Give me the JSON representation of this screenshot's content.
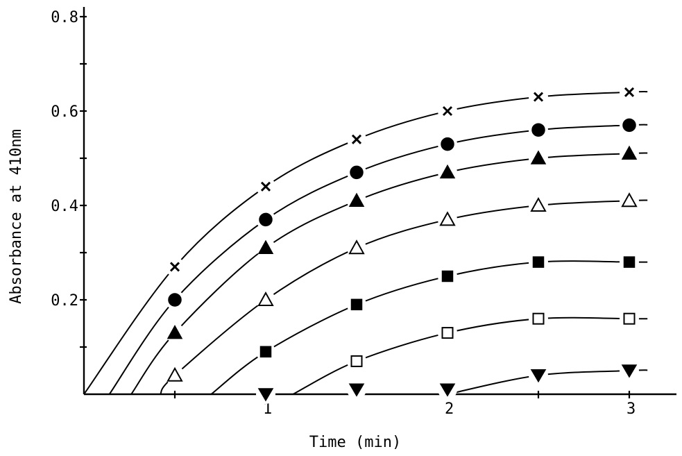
{
  "chart_data": {
    "type": "line",
    "xlabel": "Time (min)",
    "ylabel": "Absorbance at 410nm",
    "xlim": [
      0,
      3.1
    ],
    "ylim": [
      0,
      0.8
    ],
    "x_ticks": [
      1,
      2,
      3
    ],
    "x_tick_labels": [
      "1",
      "2",
      "3"
    ],
    "y_ticks": [
      0.2,
      0.4,
      0.6,
      0.8
    ],
    "y_tick_labels": [
      "0.2",
      "0.4",
      "0.6",
      "0.8"
    ],
    "grid": false,
    "series": [
      {
        "marker": "cross",
        "x": [
          0.5,
          1.0,
          1.5,
          2.0,
          2.5,
          3.0
        ],
        "values": [
          0.27,
          0.44,
          0.54,
          0.6,
          0.63,
          0.64
        ],
        "x_intercept": 0.0
      },
      {
        "marker": "filled-circle",
        "x": [
          0.5,
          1.0,
          1.5,
          2.0,
          2.5,
          3.0
        ],
        "values": [
          0.2,
          0.37,
          0.47,
          0.53,
          0.56,
          0.57
        ],
        "x_intercept": 0.14
      },
      {
        "marker": "filled-triangle",
        "x": [
          0.5,
          1.0,
          1.5,
          2.0,
          2.5,
          3.0
        ],
        "values": [
          0.13,
          0.31,
          0.41,
          0.47,
          0.5,
          0.51
        ],
        "x_intercept": 0.26
      },
      {
        "marker": "open-triangle",
        "x": [
          0.5,
          1.0,
          1.5,
          2.0,
          2.5,
          3.0
        ],
        "values": [
          0.04,
          0.2,
          0.31,
          0.37,
          0.4,
          0.41
        ],
        "x_intercept": 0.42
      },
      {
        "marker": "filled-square",
        "x": [
          1.0,
          1.5,
          2.0,
          2.5,
          3.0
        ],
        "values": [
          0.09,
          0.19,
          0.25,
          0.28,
          0.28
        ],
        "x_intercept": 0.7
      },
      {
        "marker": "open-square",
        "x": [
          1.5,
          2.0,
          2.5,
          3.0
        ],
        "values": [
          0.07,
          0.13,
          0.16,
          0.16
        ],
        "x_intercept": 1.15
      },
      {
        "marker": "filled-inverted-triangle",
        "x": [
          1.0,
          1.5,
          2.0,
          2.5,
          3.0
        ],
        "values": [
          0.0,
          0.01,
          0.01,
          0.04,
          0.05
        ],
        "x_intercept": 2.0
      }
    ]
  }
}
